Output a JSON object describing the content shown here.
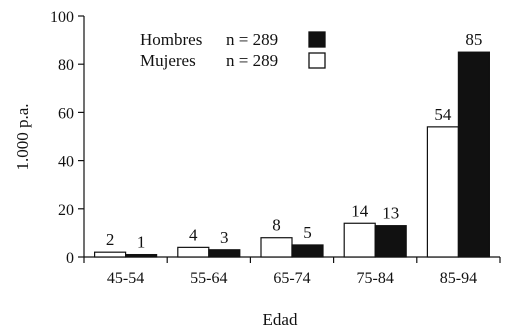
{
  "chart_data": {
    "type": "bar",
    "xlabel": "Edad",
    "ylabel": "1.000 p.a.",
    "ylim": [
      0,
      100
    ],
    "yticks": [
      0,
      20,
      40,
      60,
      80,
      100
    ],
    "categories": [
      "45-54",
      "55-64",
      "65-74",
      "75-84",
      "85-94"
    ],
    "series": [
      {
        "name": "Mujeres",
        "n_label": "n = 289",
        "fill": "#ffffff",
        "values": [
          2,
          4,
          8,
          14,
          54
        ]
      },
      {
        "name": "Hombres",
        "n_label": "n = 289",
        "fill": "#111111",
        "values": [
          1,
          3,
          5,
          13,
          85
        ]
      }
    ],
    "legend": {
      "placement": "top-left",
      "order": [
        "Hombres",
        "Mujeres"
      ]
    },
    "grid": false
  }
}
